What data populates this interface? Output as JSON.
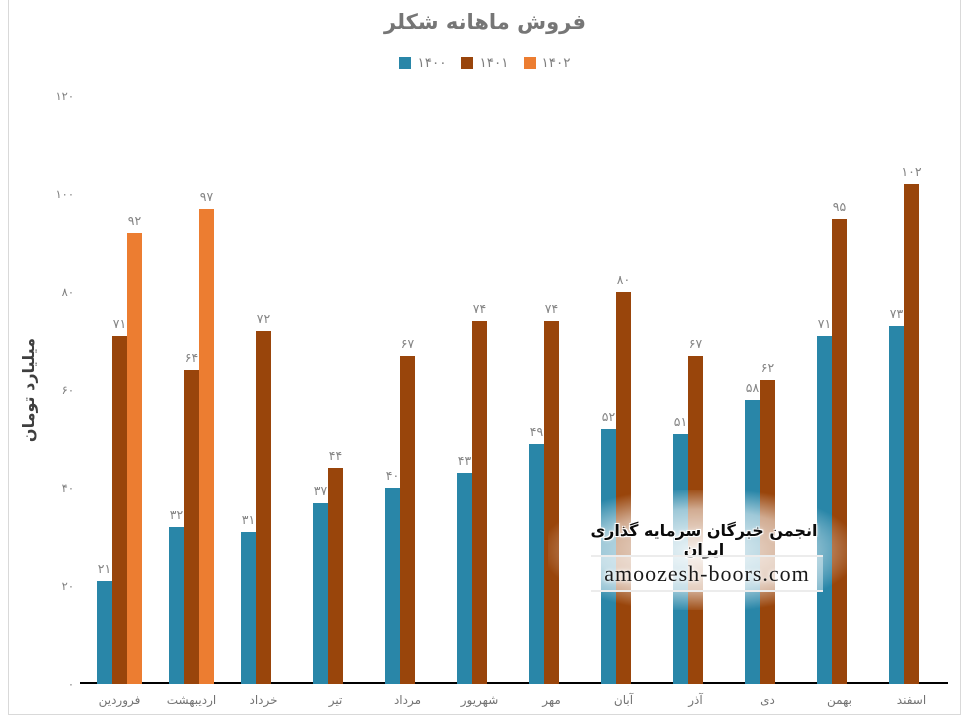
{
  "chart_data": {
    "type": "bar",
    "title": "فروش ماهانه شکلر",
    "xlabel": "",
    "ylabel": "میلیارد تومان",
    "categories": [
      "فروردین",
      "اردیبهشت",
      "خرداد",
      "تیر",
      "مرداد",
      "شهریور",
      "مهر",
      "آبان",
      "آذر",
      "دی",
      "بهمن",
      "اسفند"
    ],
    "series": [
      {
        "name": "۱۴۰۰",
        "color": "#2986A8",
        "values": [
          21,
          32,
          31,
          37,
          40,
          43,
          49,
          52,
          51,
          58,
          71,
          73
        ]
      },
      {
        "name": "۱۴۰۱",
        "color": "#99450B",
        "values": [
          71,
          64,
          72,
          44,
          67,
          74,
          74,
          80,
          67,
          62,
          95,
          102
        ]
      },
      {
        "name": "۱۴۰۲",
        "color": "#EC7D31",
        "values": [
          92,
          97,
          null,
          null,
          null,
          null,
          null,
          null,
          null,
          null,
          null,
          null
        ]
      }
    ],
    "ylim": [
      0,
      120
    ],
    "yticks": [
      0,
      20,
      40,
      60,
      80,
      100,
      120
    ],
    "grid": false,
    "legend_position": "top",
    "data_labels": true,
    "digit_style": "persian"
  },
  "watermark": {
    "association_line": "انجمن خبرگان سرمایه گذاری ایران",
    "site_line": "amoozesh-boors.com"
  },
  "colors": {
    "series_1400": "#2986A8",
    "series_1401": "#99450B",
    "series_1402": "#EC7D31",
    "title_text": "#767676",
    "axis_labels": "#7f7f7f",
    "data_labels": "#848484",
    "axis_line": "#000000",
    "frame_border": "#d9d9d9"
  }
}
